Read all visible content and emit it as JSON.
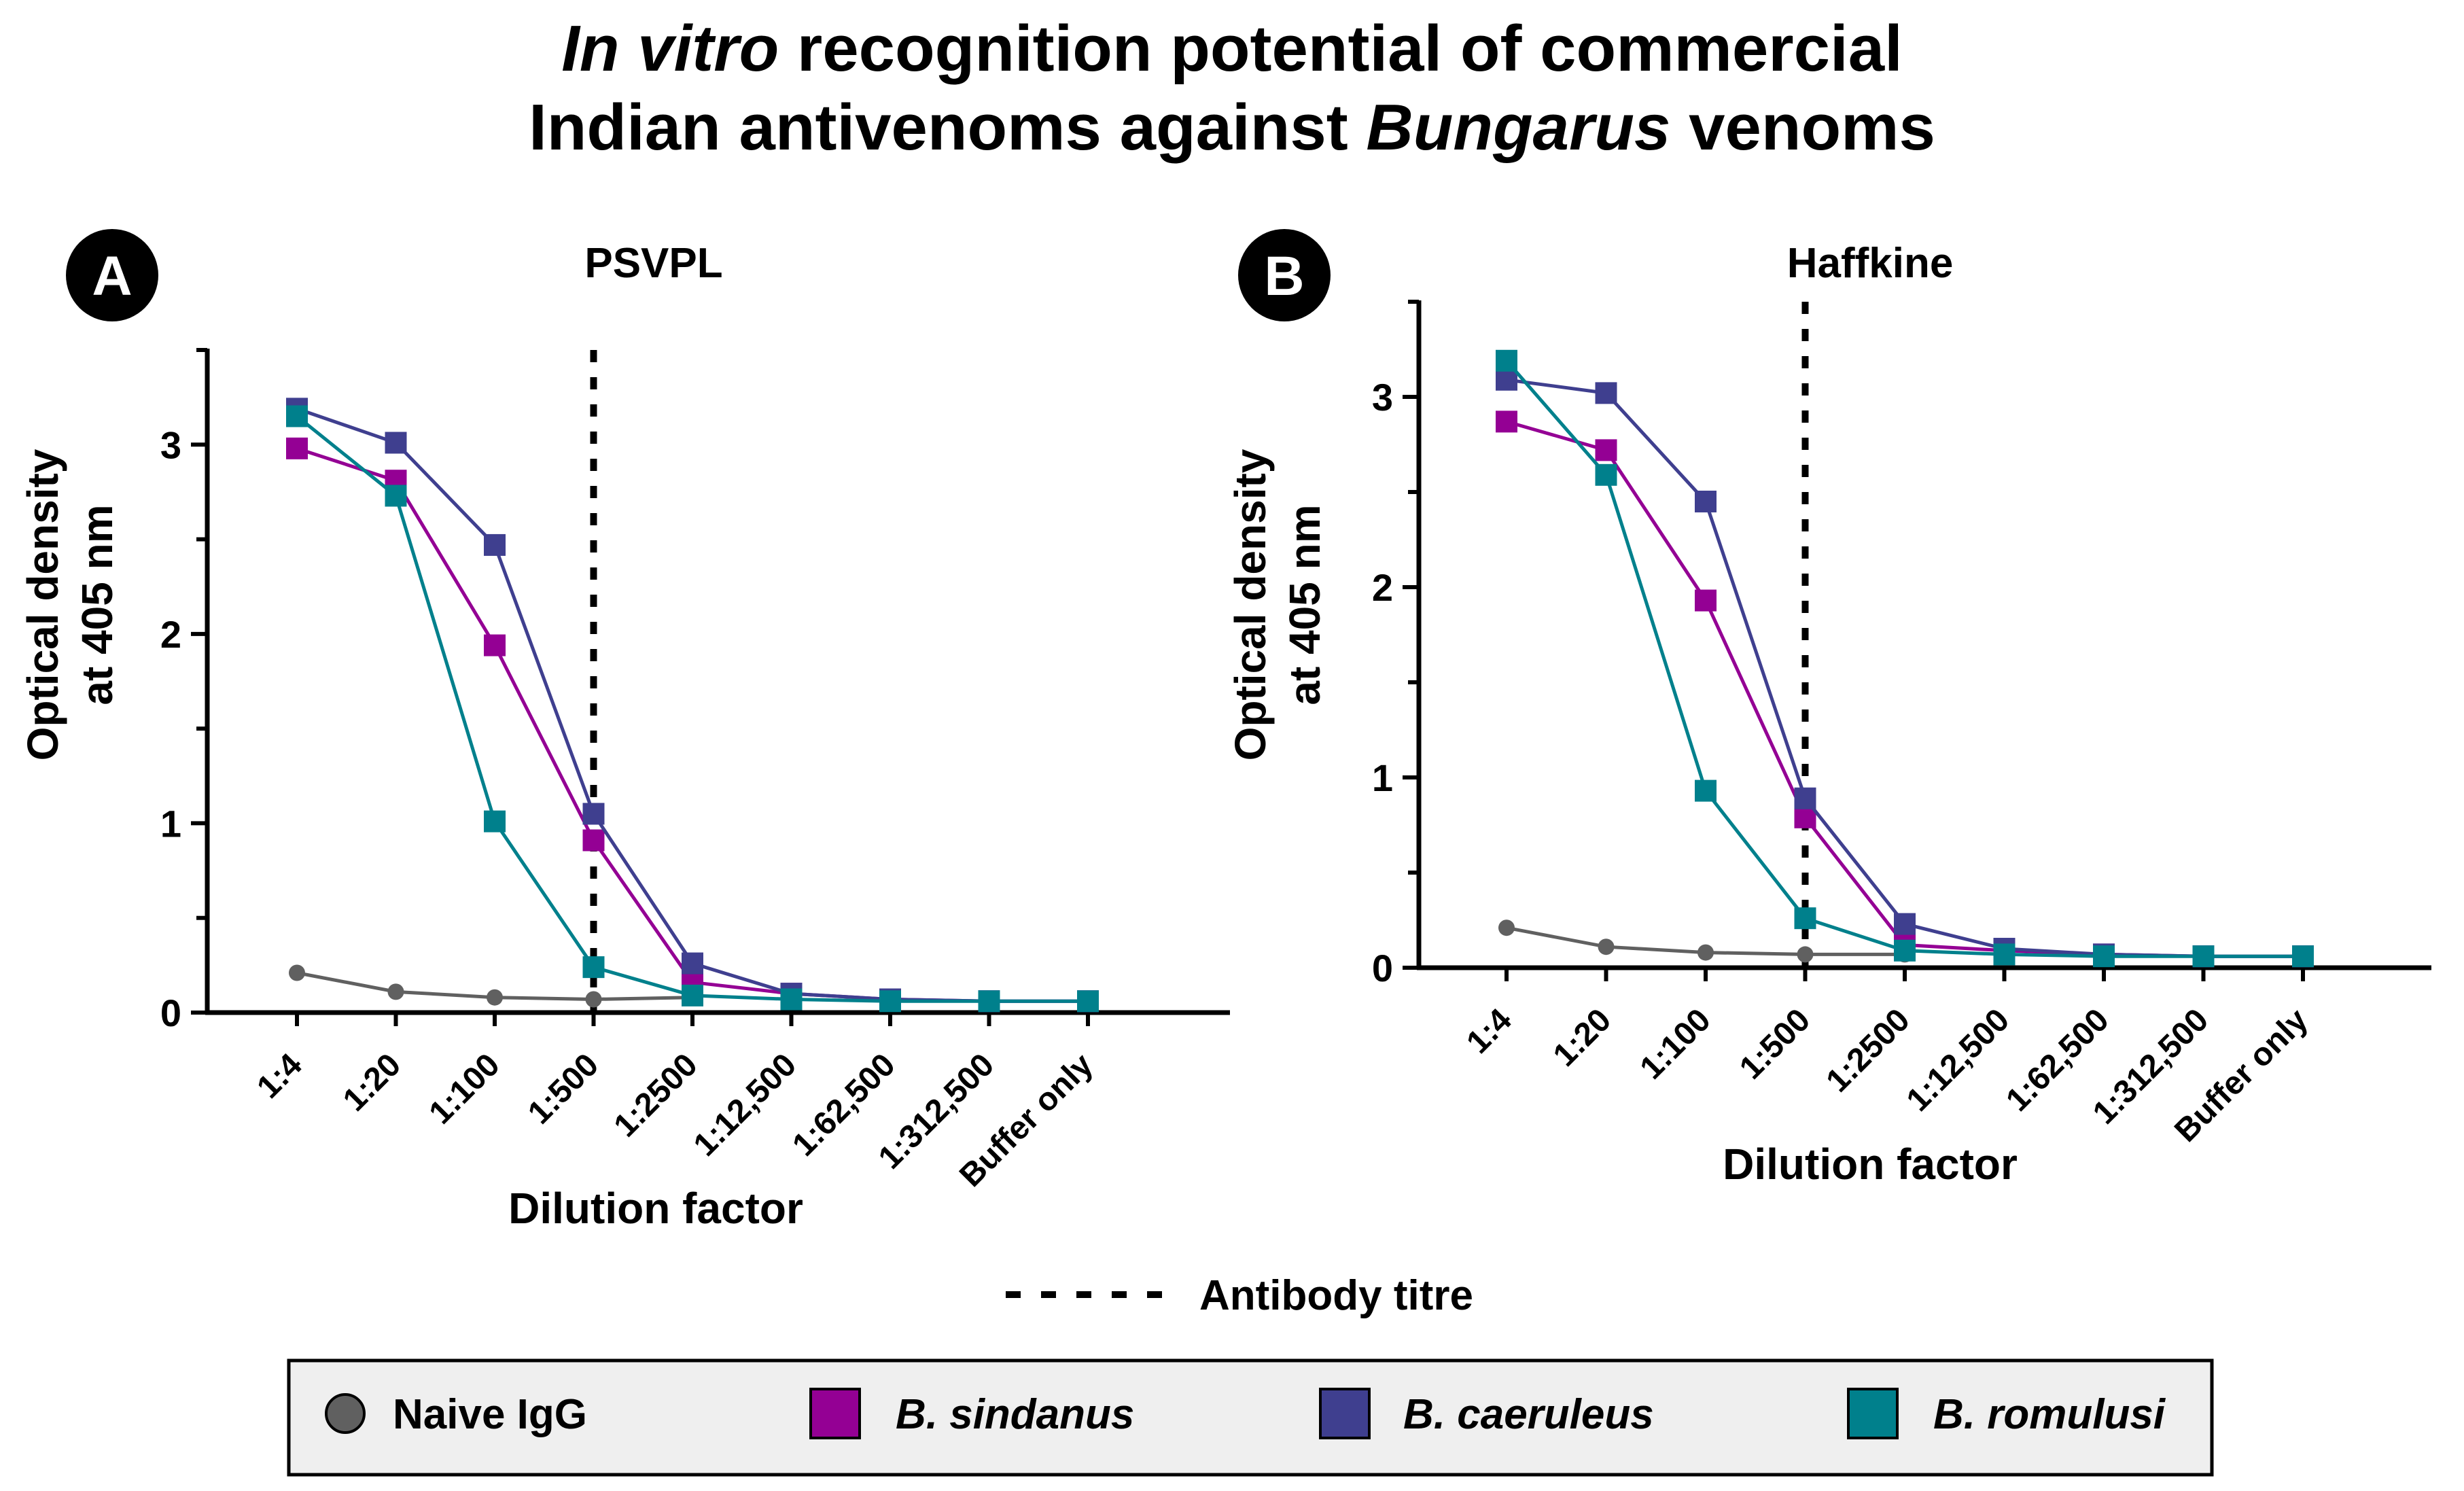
{
  "title": {
    "line1": [
      {
        "text": "In vitro",
        "italic": true
      },
      {
        "text": " recognition potential of commercial",
        "italic": false
      }
    ],
    "line2": [
      {
        "text": "Indian antivenoms against ",
        "italic": false
      },
      {
        "text": "Bungarus",
        "italic": true
      },
      {
        "text": " venoms",
        "italic": false
      }
    ]
  },
  "series_styles": [
    {
      "name": "Naive IgG",
      "color": "#606060",
      "marker": "circle"
    },
    {
      "name": "B. sindanus",
      "color": "#940094",
      "marker": "square"
    },
    {
      "name": "B. caeruleus",
      "color": "#3f3f8f",
      "marker": "square"
    },
    {
      "name": "B. romulusi",
      "color": "#00808c",
      "marker": "square"
    }
  ],
  "reference_line": {
    "label": "Antibody titre",
    "style": "dotted",
    "color": "#000000"
  },
  "legend": {
    "items": [
      {
        "label": "Naive IgG",
        "italic": false
      },
      {
        "label": "B. sindanus",
        "italic": true
      },
      {
        "label": "B. caeruleus",
        "italic": true
      },
      {
        "label": "B. romulusi",
        "italic": true
      }
    ],
    "placement": "bottom",
    "background": "#efefef"
  },
  "chart_data": [
    {
      "type": "line",
      "panel_letter": "A",
      "title": "PSVPL",
      "xlabel": "Dilution factor",
      "ylabel": [
        "Optical density",
        "at 405 nm"
      ],
      "categories": [
        "1:4",
        "1:20",
        "1:100",
        "1:500",
        "1:2500",
        "1:12,500",
        "1:62,500",
        "1:312,500",
        "Buffer only"
      ],
      "ylim": [
        0,
        3.5
      ],
      "yticks": [
        0,
        1,
        2,
        3
      ],
      "grid": false,
      "titre_at": "1:500",
      "series": [
        {
          "name": "Naive IgG",
          "values": [
            0.21,
            0.11,
            0.08,
            0.07,
            0.08,
            null,
            null,
            null,
            null
          ]
        },
        {
          "name": "B. sindanus",
          "values": [
            2.98,
            2.81,
            1.94,
            0.91,
            0.16,
            0.1,
            0.07,
            0.06,
            0.06
          ]
        },
        {
          "name": "B. caeruleus",
          "values": [
            3.19,
            3.01,
            2.47,
            1.05,
            0.26,
            0.1,
            0.07,
            0.06,
            0.06
          ]
        },
        {
          "name": "B. romulusi",
          "values": [
            3.15,
            2.73,
            1.01,
            0.24,
            0.09,
            0.07,
            0.06,
            0.06,
            0.06
          ]
        }
      ]
    },
    {
      "type": "line",
      "panel_letter": "B",
      "title": "Haffkine",
      "xlabel": "Dilution factor",
      "ylabel": [
        "Optical density",
        "at 405 nm"
      ],
      "categories": [
        "1:4",
        "1:20",
        "1:100",
        "1:500",
        "1:2500",
        "1:12,500",
        "1:62,500",
        "1:312,500",
        "Buffer only"
      ],
      "ylim": [
        0,
        3.5
      ],
      "yticks": [
        0,
        1,
        2,
        3
      ],
      "grid": false,
      "titre_at": "1:500",
      "series": [
        {
          "name": "Naive IgG",
          "values": [
            0.21,
            0.11,
            0.08,
            0.07,
            0.07,
            null,
            null,
            null,
            null
          ]
        },
        {
          "name": "B. sindanus",
          "values": [
            2.87,
            2.72,
            1.93,
            0.79,
            0.12,
            0.09,
            0.07,
            0.06,
            0.06
          ]
        },
        {
          "name": "B. caeruleus",
          "values": [
            3.09,
            3.02,
            2.45,
            0.89,
            0.23,
            0.1,
            0.07,
            0.06,
            0.06
          ]
        },
        {
          "name": "B. romulusi",
          "values": [
            3.19,
            2.59,
            0.93,
            0.26,
            0.09,
            0.07,
            0.06,
            0.06,
            0.06
          ]
        }
      ]
    }
  ]
}
